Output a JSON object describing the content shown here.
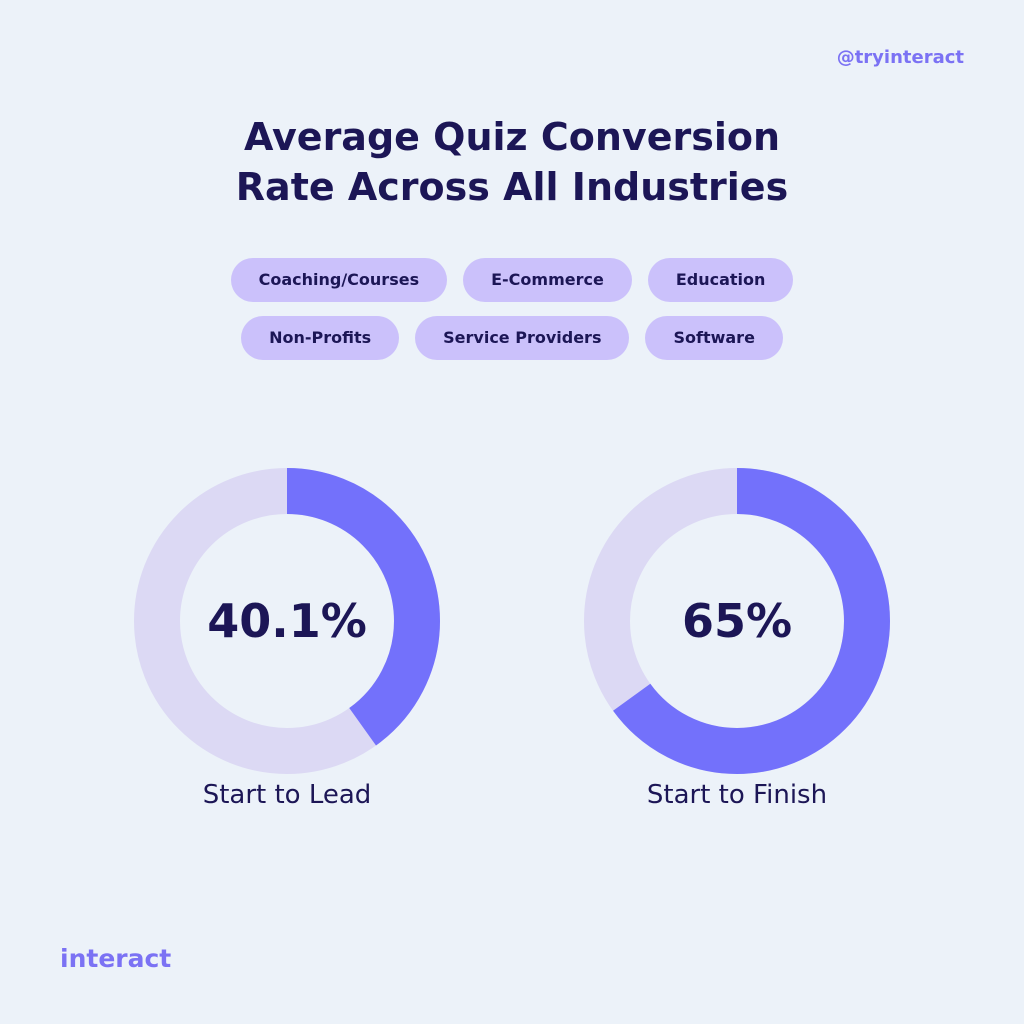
{
  "handle": "@tryinteract",
  "title_lines": [
    "Average Quiz Conversion",
    "Rate Across All Industries"
  ],
  "tags": {
    "row1": [
      "Coaching/Courses",
      "E-Commerce",
      "Education"
    ],
    "row2": [
      "Non-Profits",
      "Service Providers",
      "Software"
    ]
  },
  "chart_data": {
    "type": "pie",
    "donuts": [
      {
        "label": "Start to Lead",
        "value_text": "40.1%",
        "value": 40.1
      },
      {
        "label": "Start to Finish",
        "value_text": "65%",
        "value": 65
      }
    ]
  },
  "colors": {
    "accent": "#7371fb",
    "track": "#dcd9f4",
    "text": "#1c1656",
    "tag_bg": "#cbc1fb",
    "background": "#ecf2f9"
  },
  "brand": "interact"
}
